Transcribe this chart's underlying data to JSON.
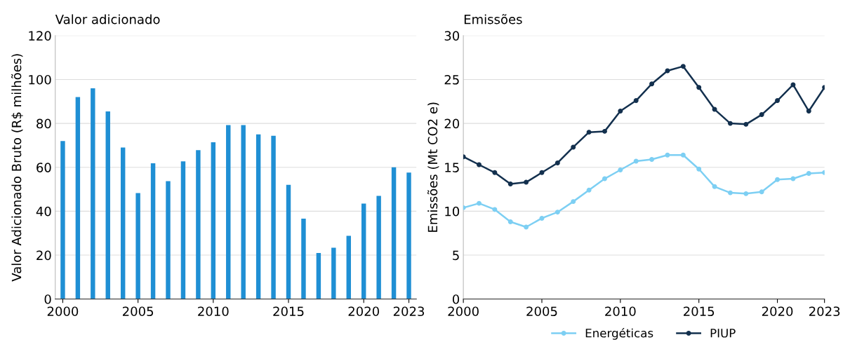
{
  "chart_data": [
    {
      "type": "bar",
      "title": "Valor adicionado",
      "ylabel": "Valor Adicionado Bruto (R$ milhões)",
      "x": [
        2000,
        2001,
        2002,
        2003,
        2004,
        2005,
        2006,
        2007,
        2008,
        2009,
        2010,
        2011,
        2012,
        2013,
        2014,
        2015,
        2016,
        2017,
        2018,
        2019,
        2020,
        2021,
        2022,
        2023
      ],
      "values": [
        72,
        92,
        96,
        85.5,
        69,
        48.3,
        61.8,
        53.7,
        62.7,
        67.8,
        71.4,
        79.2,
        79.2,
        75,
        74.4,
        52,
        36.6,
        21,
        23.4,
        28.8,
        43.5,
        47,
        60,
        57.6
      ],
      "color": "#1f8fd4",
      "xlim": [
        1999.5,
        2023.5
      ],
      "xticks": [
        2000,
        2005,
        2010,
        2015,
        2020,
        2023
      ],
      "ylim": [
        0,
        120
      ],
      "yticks": [
        0,
        20,
        40,
        60,
        80,
        100,
        120
      ],
      "grid": "y"
    },
    {
      "type": "line",
      "title": "Emissões",
      "ylabel": "Emissões (Mt CO2 e)",
      "x": [
        2000,
        2001,
        2002,
        2003,
        2004,
        2005,
        2006,
        2007,
        2008,
        2009,
        2010,
        2011,
        2012,
        2013,
        2014,
        2015,
        2016,
        2017,
        2018,
        2019,
        2020,
        2021,
        2022,
        2023
      ],
      "series": [
        {
          "name": "Energéticas",
          "color": "#7dcff3",
          "values": [
            10.4,
            10.9,
            10.2,
            8.8,
            8.2,
            9.2,
            9.9,
            11.1,
            12.4,
            13.7,
            14.7,
            15.7,
            15.9,
            16.4,
            16.4,
            14.8,
            12.8,
            12.1,
            12.0,
            12.2,
            13.6,
            13.7,
            14.3,
            14.4
          ]
        },
        {
          "name": "PIUP",
          "color": "#13304e",
          "values": [
            16.2,
            15.3,
            14.4,
            13.1,
            13.3,
            14.4,
            15.5,
            17.3,
            19.0,
            19.1,
            21.4,
            22.6,
            24.5,
            26.0,
            26.5,
            24.1,
            21.6,
            20.0,
            19.9,
            21.0,
            22.6,
            24.4,
            21.4,
            24.1
          ]
        }
      ],
      "xlim": [
        2000,
        2023
      ],
      "xticks": [
        2000,
        2005,
        2010,
        2015,
        2020,
        2023
      ],
      "ylim": [
        0,
        30
      ],
      "yticks": [
        0,
        5,
        10,
        15,
        20,
        25,
        30
      ],
      "grid": "y",
      "legend": "bottom",
      "marker": "circle",
      "line_style": "solid"
    }
  ]
}
